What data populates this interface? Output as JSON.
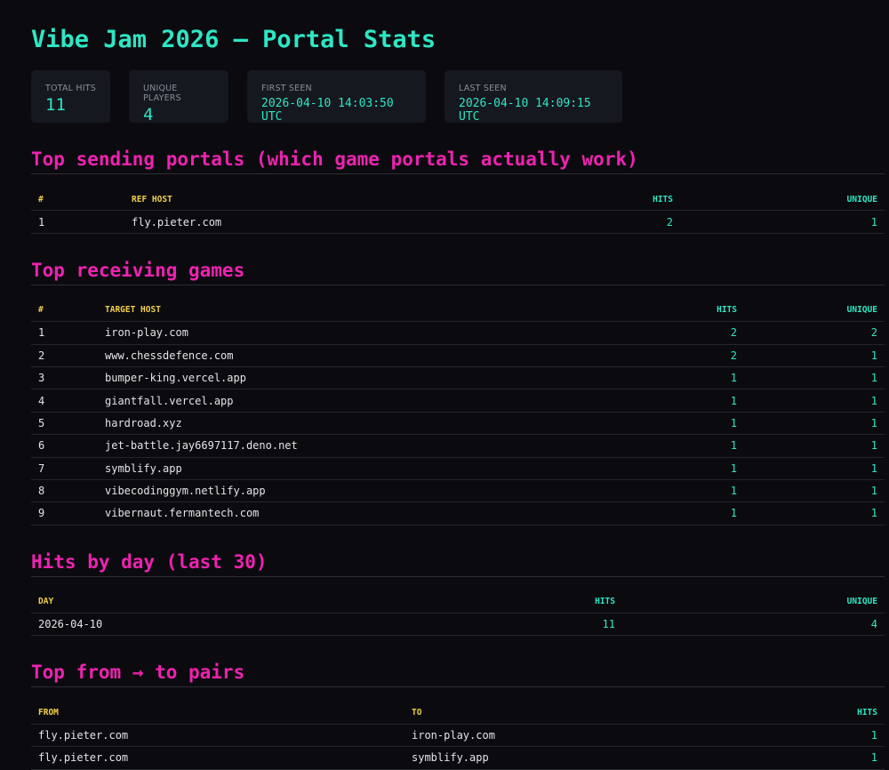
{
  "title": "Vibe Jam 2026 — Portal Stats",
  "stats": [
    {
      "label": "TOTAL HITS",
      "value": 11
    },
    {
      "label": "UNIQUE PLAYERS",
      "value": 4
    },
    {
      "label": "FIRST SEEN",
      "value": "2026-04-10 14:03:50 UTC"
    },
    {
      "label": "LAST SEEN",
      "value": "2026-04-10 14:09:15 UTC"
    }
  ],
  "sections": [
    {
      "heading": "Top sending portals (which game portals actually work)",
      "table": {
        "columns": [
          "#",
          "REF HOST",
          "HITS",
          "UNIQUE"
        ],
        "rows": [
          [
            1,
            "fly.pieter.com",
            2,
            1
          ]
        ]
      }
    },
    {
      "heading": "Top receiving games",
      "table": {
        "columns": [
          "#",
          "TARGET HOST",
          "HITS",
          "UNIQUE"
        ],
        "rows": [
          [
            1,
            "iron-play.com",
            2,
            2
          ],
          [
            2,
            "www.chessdefence.com",
            2,
            1
          ],
          [
            3,
            "bumper-king.vercel.app",
            1,
            1
          ],
          [
            4,
            "giantfall.vercel.app",
            1,
            1
          ],
          [
            5,
            "hardroad.xyz",
            1,
            1
          ],
          [
            6,
            "jet-battle.jay6697117.deno.net",
            1,
            1
          ],
          [
            7,
            "symblify.app",
            1,
            1
          ],
          [
            8,
            "vibecodinggym.netlify.app",
            1,
            1
          ],
          [
            9,
            "vibernaut.fermantech.com",
            1,
            1
          ]
        ]
      }
    },
    {
      "heading": "Hits by day (last 30)",
      "table": {
        "columns": [
          "DAY",
          "HITS",
          "UNIQUE"
        ],
        "rows": [
          [
            "2026-04-10",
            11,
            4
          ]
        ]
      }
    },
    {
      "heading": "Top from → to pairs",
      "table": {
        "columns": [
          "FROM",
          "TO",
          "HITS"
        ],
        "rows": [
          [
            "fly.pieter.com",
            "iron-play.com",
            1
          ],
          [
            "fly.pieter.com",
            "symblify.app",
            1
          ]
        ]
      }
    }
  ]
}
